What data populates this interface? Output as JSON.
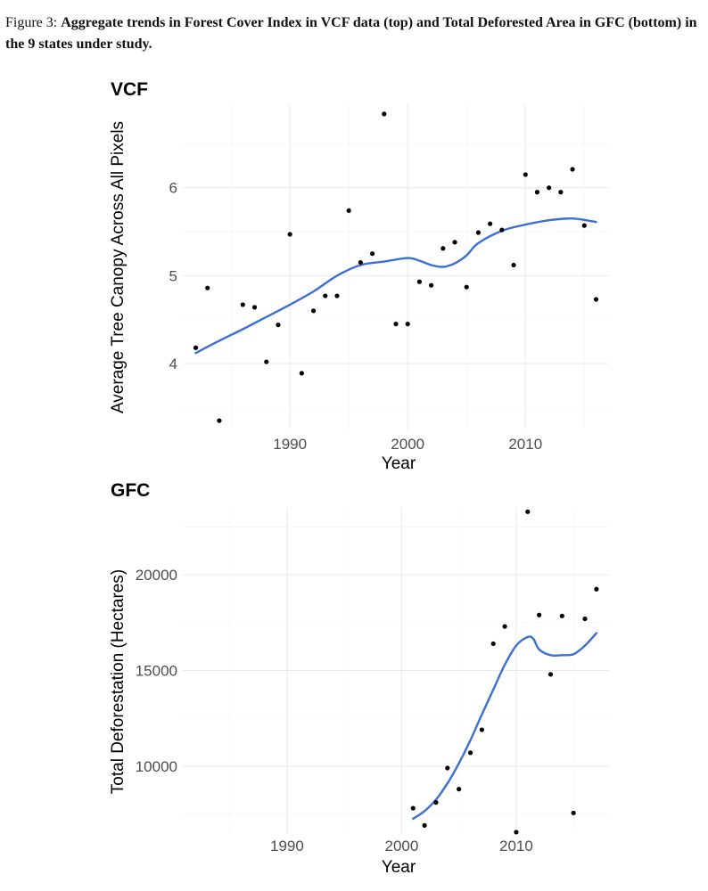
{
  "caption": {
    "prefix": "Figure 3: ",
    "text": "Aggregate trends in Forest Cover Index in VCF data (top) and Total Deforested Area in GFC (bottom) in the 9 states under study."
  },
  "colors": {
    "smooth_line": "#3b6fd6",
    "points": "#000000",
    "grid": "#ebebeb"
  },
  "chart_data": [
    {
      "type": "scatter",
      "title": "VCF",
      "xlabel": "Year",
      "ylabel": "Average Tree Canopy Across All Pixels",
      "xlim": [
        1980.9,
        2017.1
      ],
      "ylim": [
        3.25,
        6.95
      ],
      "xticks": [
        1990,
        2000,
        2010
      ],
      "yticks": [
        4,
        5,
        6
      ],
      "x": [
        1982,
        1983,
        1984,
        1986,
        1987,
        1988,
        1989,
        1990,
        1991,
        1992,
        1993,
        1994,
        1995,
        1996,
        1997,
        1998,
        1999,
        2000,
        2001,
        2002,
        2003,
        2004,
        2005,
        2006,
        2007,
        2008,
        2009,
        2010,
        2011,
        2012,
        2013,
        2014,
        2015,
        2016
      ],
      "y": [
        4.18,
        4.86,
        3.35,
        4.67,
        4.64,
        4.02,
        4.44,
        5.47,
        3.89,
        4.6,
        4.77,
        4.77,
        5.74,
        5.15,
        5.25,
        6.84,
        4.45,
        4.45,
        4.93,
        4.89,
        5.31,
        5.38,
        4.87,
        5.49,
        5.59,
        5.52,
        5.12,
        6.15,
        5.95,
        6.0,
        5.95,
        6.21,
        5.57,
        4.73
      ],
      "trend": {
        "x": [
          1982,
          1984,
          1986,
          1988,
          1990,
          1992,
          1994,
          1996,
          1998,
          2000,
          2001,
          2002,
          2003,
          2004,
          2005,
          2006,
          2008,
          2010,
          2012,
          2014,
          2016
        ],
        "y": [
          4.12,
          4.26,
          4.39,
          4.53,
          4.67,
          4.82,
          5.0,
          5.12,
          5.16,
          5.2,
          5.17,
          5.12,
          5.1,
          5.14,
          5.23,
          5.37,
          5.51,
          5.58,
          5.63,
          5.65,
          5.61
        ]
      }
    },
    {
      "type": "scatter",
      "title": "GFC",
      "xlabel": "Year",
      "ylabel": "Total Deforestation (Hectares)",
      "xlim": [
        1980.9,
        2018.1
      ],
      "ylim": [
        6500,
        23500
      ],
      "xticks": [
        1990,
        2000,
        2010
      ],
      "yticks": [
        10000,
        15000,
        20000
      ],
      "x": [
        2001,
        2002,
        2003,
        2004,
        2005,
        2006,
        2007,
        2008,
        2009,
        2010,
        2011,
        2012,
        2013,
        2014,
        2015,
        2016,
        2017
      ],
      "y": [
        7800,
        6900,
        8100,
        9900,
        8800,
        10700,
        11900,
        16400,
        17300,
        6550,
        23300,
        17900,
        14800,
        17850,
        7550,
        17700,
        19250
      ],
      "trend": {
        "x": [
          2001,
          2002,
          2003,
          2004,
          2005,
          2006,
          2007,
          2008,
          2009,
          2010,
          2011,
          2011.5,
          2012,
          2013,
          2014,
          2015,
          2016,
          2017
        ],
        "y": [
          7250,
          7650,
          8250,
          9100,
          10150,
          11350,
          12700,
          14000,
          15300,
          16300,
          16750,
          16650,
          16100,
          15800,
          15800,
          15850,
          16300,
          16950
        ]
      }
    }
  ]
}
